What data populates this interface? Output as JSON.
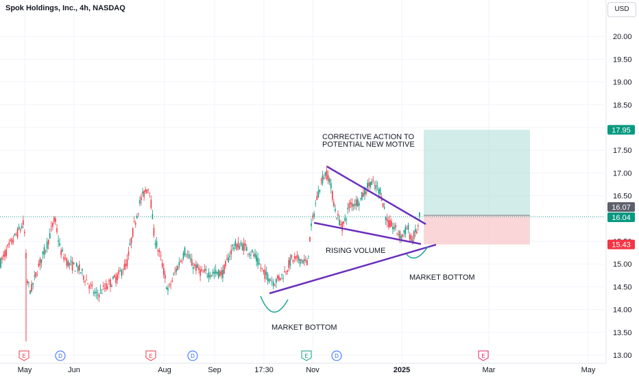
{
  "header": {
    "title": "Spok Holdings, Inc., 4h, NASDAQ",
    "currency": "USD"
  },
  "chart_data": {
    "type": "candlestick",
    "ylim": [
      12.9,
      20.55
    ],
    "y_ticks": [
      "13.00",
      "13.50",
      "14.00",
      "14.50",
      "15.00",
      "15.50",
      "16.00",
      "16.50",
      "17.00",
      "17.50",
      "18.00",
      "18.50",
      "19.00",
      "19.50",
      "20.00"
    ],
    "x_ticks": [
      {
        "label": "May",
        "bold": false
      },
      {
        "label": "Jun",
        "bold": false
      },
      {
        "label": "Aug",
        "bold": false
      },
      {
        "label": "Sep",
        "bold": false
      },
      {
        "label": "17:30",
        "bold": false
      },
      {
        "label": "Nov",
        "bold": false
      },
      {
        "label": "2025",
        "bold": true
      },
      {
        "label": "Mar",
        "bold": false
      },
      {
        "label": "May",
        "bold": false
      }
    ],
    "price_labels": [
      {
        "name": "take-profit-label",
        "text": "17.95",
        "value": 17.95,
        "bg": "#089981",
        "fg": "#ffffff"
      },
      {
        "name": "prev-close-label",
        "text": "16.07",
        "value": 16.07,
        "bg": "#5d606b",
        "fg": "#ffffff"
      },
      {
        "name": "last-price-label",
        "text": "16.04",
        "value": 16.04,
        "bg": "#089981",
        "fg": "#ffffff"
      },
      {
        "name": "stop-loss-label",
        "text": "15.43",
        "value": 15.43,
        "bg": "#f23645",
        "fg": "#ffffff"
      }
    ],
    "position": {
      "entry": 16.07,
      "target": 17.95,
      "stop": 15.43,
      "profit_color": "#b2dfdb",
      "loss_color": "#f8c8cc"
    },
    "current_price": 16.04,
    "events": [
      {
        "type": "E",
        "color": "#f23645"
      },
      {
        "type": "D",
        "color": "#2962ff"
      },
      {
        "type": "E",
        "color": "#f23645"
      },
      {
        "type": "D",
        "color": "#2962ff"
      },
      {
        "type": "E",
        "color": "#089981"
      },
      {
        "type": "D",
        "color": "#2962ff"
      },
      {
        "type": "E",
        "color": "#e91e63"
      }
    ],
    "annotations": [
      {
        "text": "CORRECTIVE ACTION TO"
      },
      {
        "text": "POTENTIAL NEW MOTIVE"
      },
      {
        "text": "RISING VOLUME"
      },
      {
        "text": "MARKET BOTTOM"
      },
      {
        "text": "MARKET BOTTOM"
      }
    ],
    "colors": {
      "up": "#089981",
      "down": "#f23645",
      "trendline": "#6a2fbd",
      "arc": "#26a69a",
      "grid": "#f0f3fa",
      "axis_text": "#131722"
    }
  }
}
